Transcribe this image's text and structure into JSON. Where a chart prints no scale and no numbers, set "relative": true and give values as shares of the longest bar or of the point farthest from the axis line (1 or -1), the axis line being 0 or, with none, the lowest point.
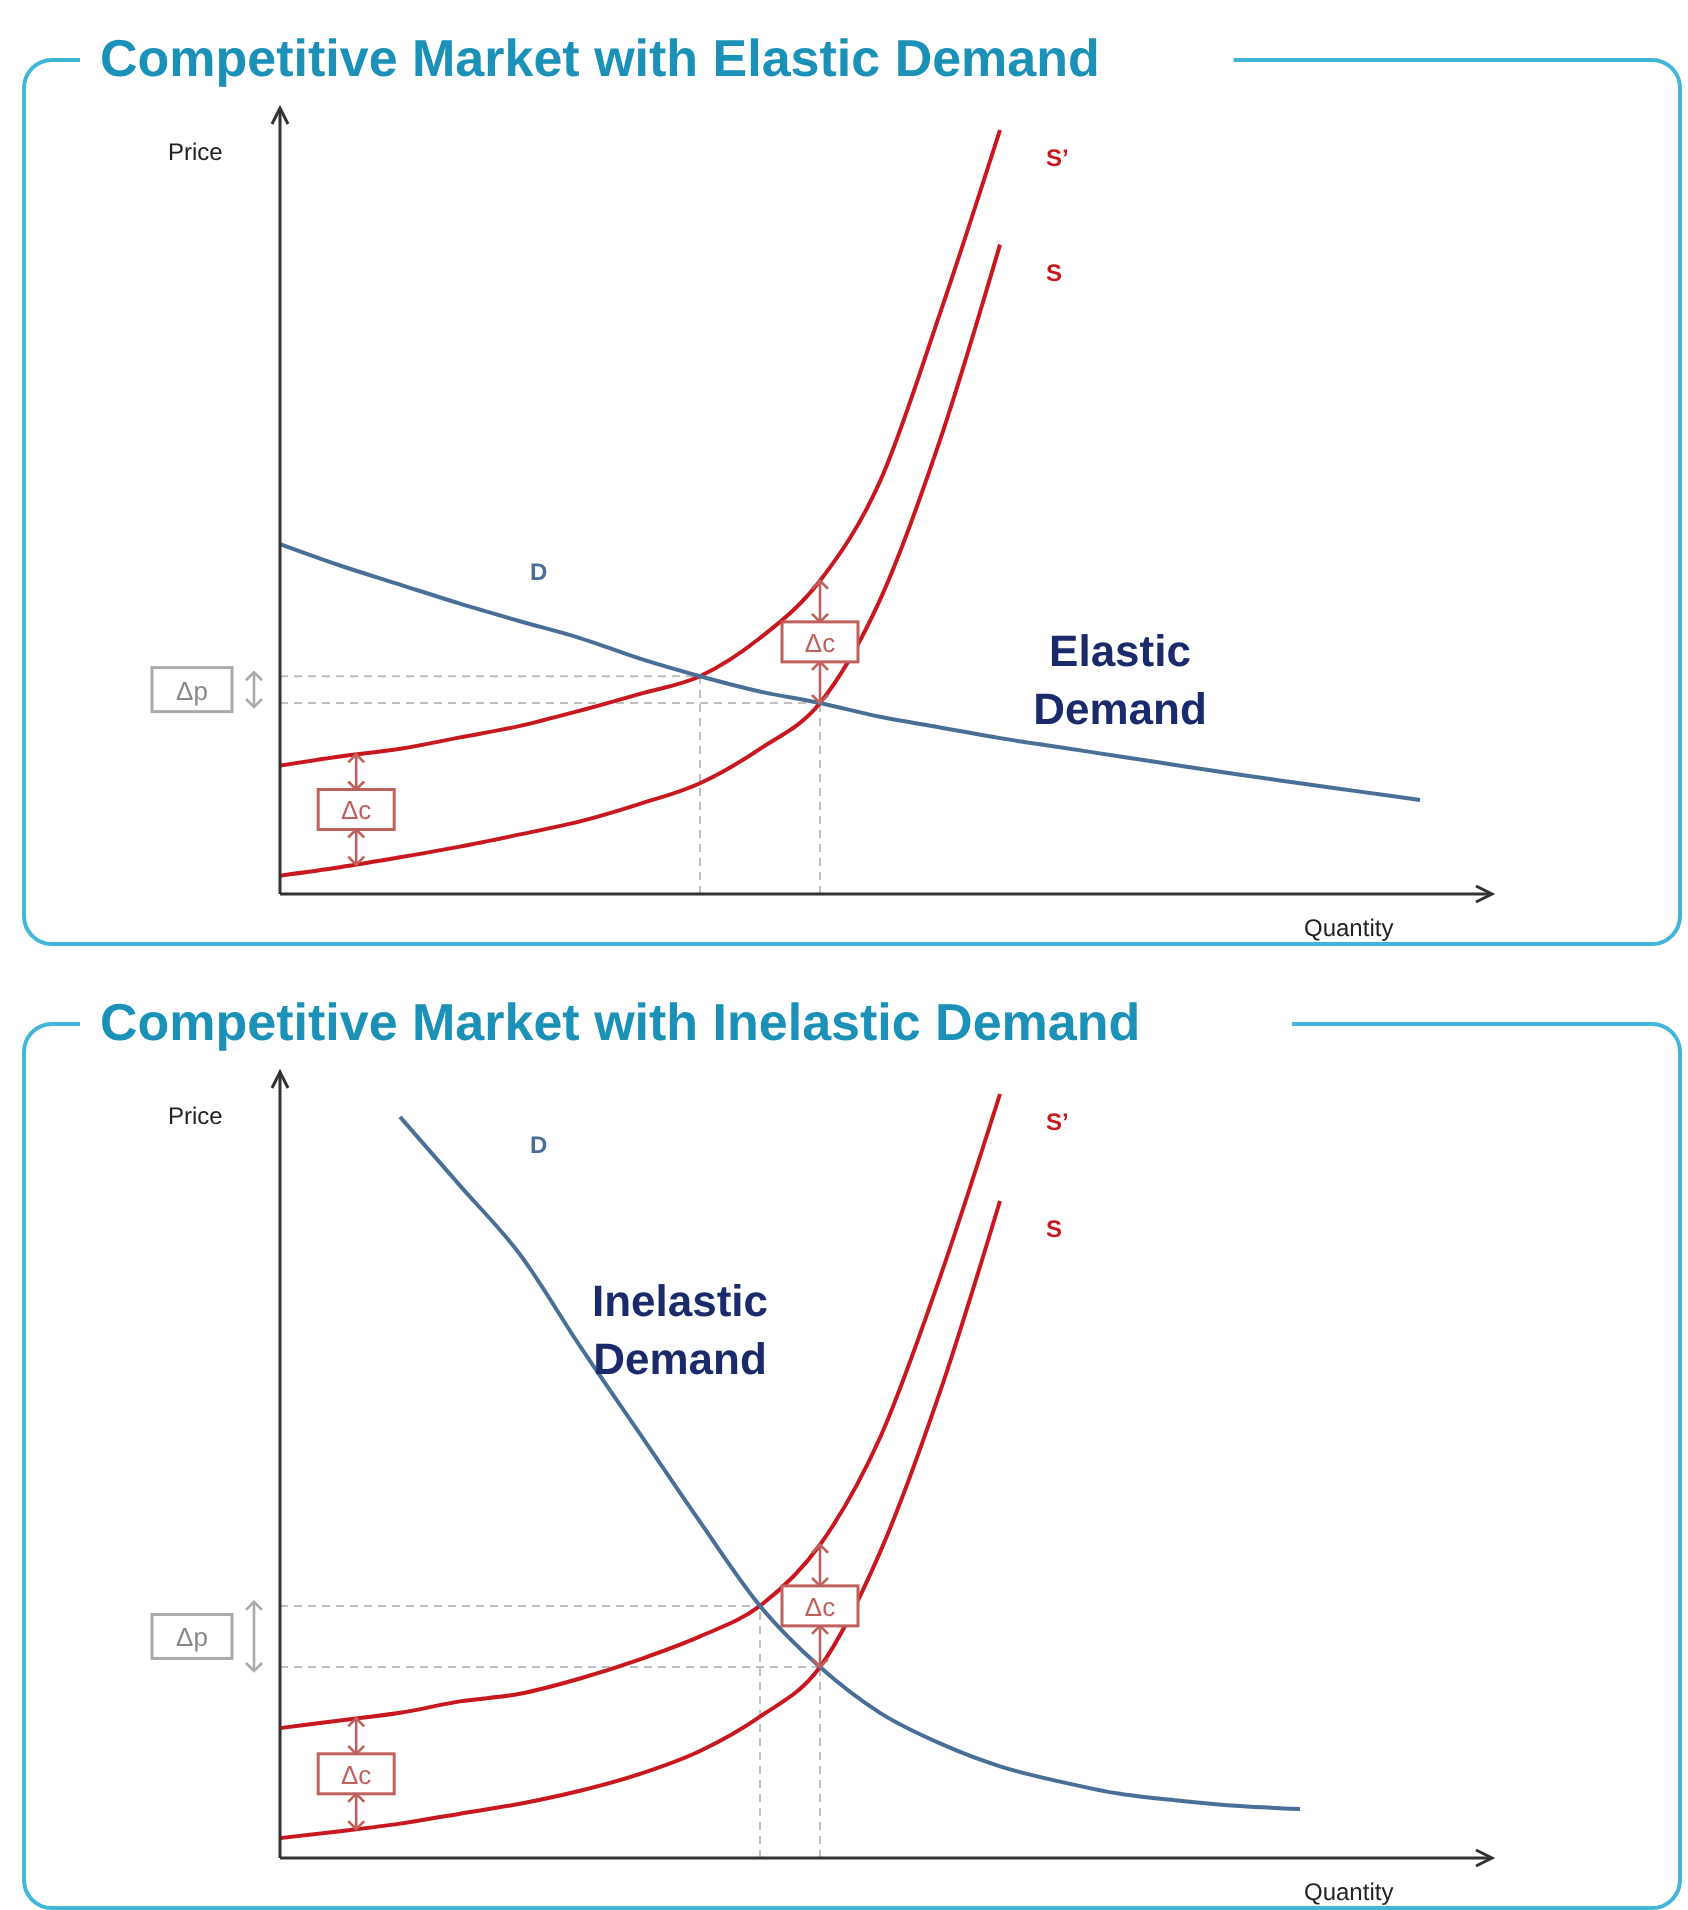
{
  "chart_data": [
    {
      "type": "line",
      "title": "Competitive Market with Elastic Demand",
      "xlabel": "Quantity",
      "ylabel": "Price",
      "relative": true,
      "tick_labels": false,
      "grid": false,
      "legend": false,
      "marker": "none",
      "line_style": "solid",
      "categories": [
        null,
        null,
        null,
        null,
        null,
        null,
        null,
        null,
        null,
        null,
        null,
        null,
        null,
        null,
        null,
        null,
        null,
        null,
        null,
        null
      ],
      "series": [
        {
          "name": "S’",
          "color": "#c8171e",
          "values": [
            0.168,
            0.18,
            0.19,
            0.205,
            0.22,
            0.24,
            0.262,
            0.285,
            0.335,
            0.41,
            0.54,
            0.76,
            1.0,
            null,
            null,
            null,
            null,
            null,
            null,
            null
          ]
        },
        {
          "name": "S",
          "color": "#c8171e",
          "values": [
            0.024,
            0.035,
            0.048,
            0.062,
            0.078,
            0.095,
            0.118,
            0.145,
            0.19,
            0.25,
            0.385,
            0.594,
            0.85,
            null,
            null,
            null,
            null,
            null,
            null,
            null
          ]
        },
        {
          "name": "D",
          "color": "#4a6f96",
          "values": [
            0.458,
            0.43,
            0.405,
            0.38,
            0.357,
            0.335,
            0.308,
            0.285,
            0.265,
            0.25,
            0.232,
            0.218,
            0.204,
            0.192,
            0.18,
            0.168,
            0.156,
            0.145,
            0.134,
            0.123
          ]
        }
      ],
      "ref_lines": [
        {
          "axis": "y",
          "value": 0.285,
          "line_style": "dashed",
          "color": "#c0c0c0"
        },
        {
          "axis": "y",
          "value": 0.25,
          "line_style": "dashed",
          "color": "#c0c0c0"
        }
      ],
      "annotations": [
        "Δp",
        "Δc",
        "Δc",
        "Elastic\nDemand"
      ]
    },
    {
      "type": "line",
      "title": "Competitive Market with Inelastic Demand",
      "xlabel": "Quantity",
      "ylabel": "Price",
      "relative": true,
      "tick_labels": false,
      "grid": false,
      "legend": false,
      "marker": "none",
      "line_style": "solid",
      "categories": [
        null,
        null,
        null,
        null,
        null,
        null,
        null,
        null,
        null,
        null,
        null,
        null,
        null,
        null,
        null,
        null,
        null,
        null
      ],
      "series": [
        {
          "name": "S’",
          "color": "#c8171e",
          "values": [
            0.17,
            0.18,
            0.19,
            0.205,
            0.215,
            0.235,
            0.26,
            0.29,
            0.33,
            0.41,
            0.55,
            0.76,
            1.0,
            null,
            null,
            null,
            null,
            null
          ]
        },
        {
          "name": "S",
          "color": "#c8171e",
          "values": [
            0.026,
            0.035,
            0.045,
            0.058,
            0.071,
            0.088,
            0.11,
            0.14,
            0.185,
            0.25,
            0.4,
            0.61,
            0.86,
            null,
            null,
            null,
            null,
            null
          ]
        },
        {
          "name": "D",
          "color": "#4a6f96",
          "values": [
            null,
            null,
            0.97,
            0.88,
            0.79,
            0.67,
            0.555,
            0.44,
            0.33,
            0.25,
            0.19,
            0.15,
            0.12,
            0.1,
            0.084,
            0.075,
            0.068,
            0.064
          ]
        }
      ],
      "ref_lines": [
        {
          "axis": "y",
          "value": 0.33,
          "line_style": "dashed",
          "color": "#c0c0c0"
        },
        {
          "axis": "y",
          "value": 0.25,
          "line_style": "dashed",
          "color": "#c0c0c0"
        }
      ],
      "annotations": [
        "Δp",
        "Δc",
        "Δc",
        "Inelastic\nDemand"
      ]
    }
  ]
}
